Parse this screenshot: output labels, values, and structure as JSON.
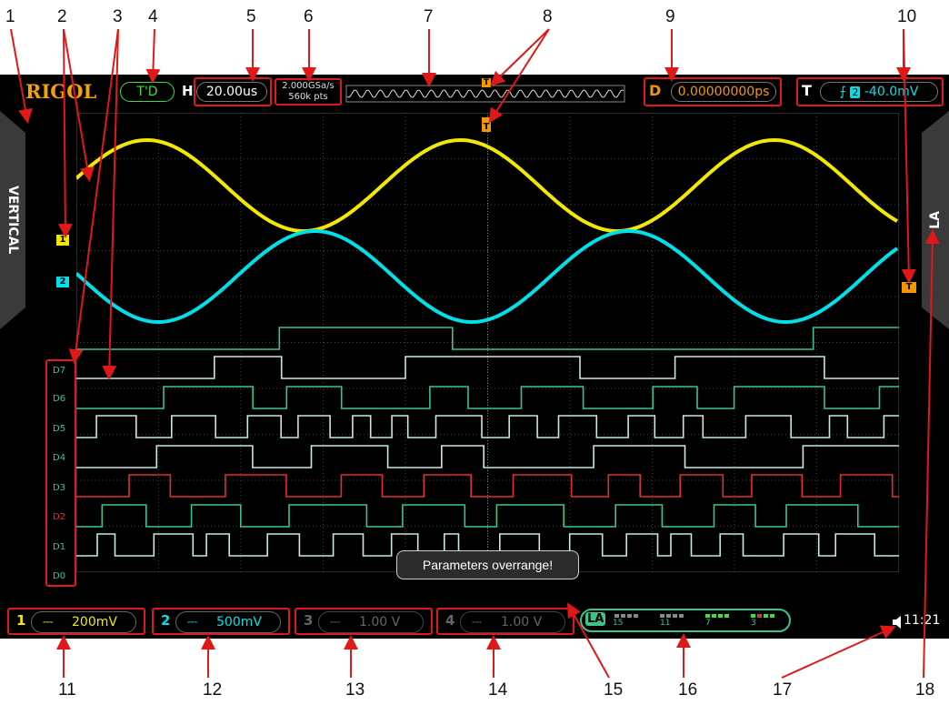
{
  "callouts": [
    "1",
    "2",
    "3",
    "4",
    "5",
    "6",
    "7",
    "8",
    "9",
    "10",
    "11",
    "12",
    "13",
    "14",
    "15",
    "16",
    "17",
    "18"
  ],
  "header": {
    "logo": "RIGOL",
    "run_status": "T'D",
    "horizontal_label": "H",
    "timebase": "20.00us",
    "sample_rate": "2.000GSa/s",
    "memory_depth": "560k pts",
    "delay_label": "D",
    "delay_value": "0.00000000ps",
    "trigger_label": "T",
    "trigger_source": "2",
    "trigger_level": "-40.0mV",
    "trigger_marker": "T"
  },
  "side_tabs": {
    "left": "VERTICAL",
    "right": "LA"
  },
  "channels": [
    {
      "num": "1",
      "coupling": "⎓",
      "scale": "200mV",
      "color": "#f5e800"
    },
    {
      "num": "2",
      "coupling": "⎓",
      "scale": "500mV",
      "color": "#00e0e8"
    },
    {
      "num": "3",
      "coupling": "⎓",
      "scale": "1.00 V",
      "color": "#666666"
    },
    {
      "num": "4",
      "coupling": "⎓",
      "scale": "1.00 V",
      "color": "#666666"
    }
  ],
  "digital_labels": [
    "D7",
    "D6",
    "D5",
    "D4",
    "D3",
    "D2",
    "D1",
    "D0"
  ],
  "la_status": {
    "label": "LA",
    "groups": [
      "15",
      "11",
      "7",
      "3"
    ]
  },
  "message": "Parameters overrange!",
  "clock": "11:21",
  "colors": {
    "ch1": "#f5e800",
    "ch2": "#00e0e8",
    "digital": "#3cc48c",
    "digital_alt": "#c8e8e0",
    "d2": "#e03030",
    "accent": "#f39800",
    "frame": "#e01818"
  }
}
